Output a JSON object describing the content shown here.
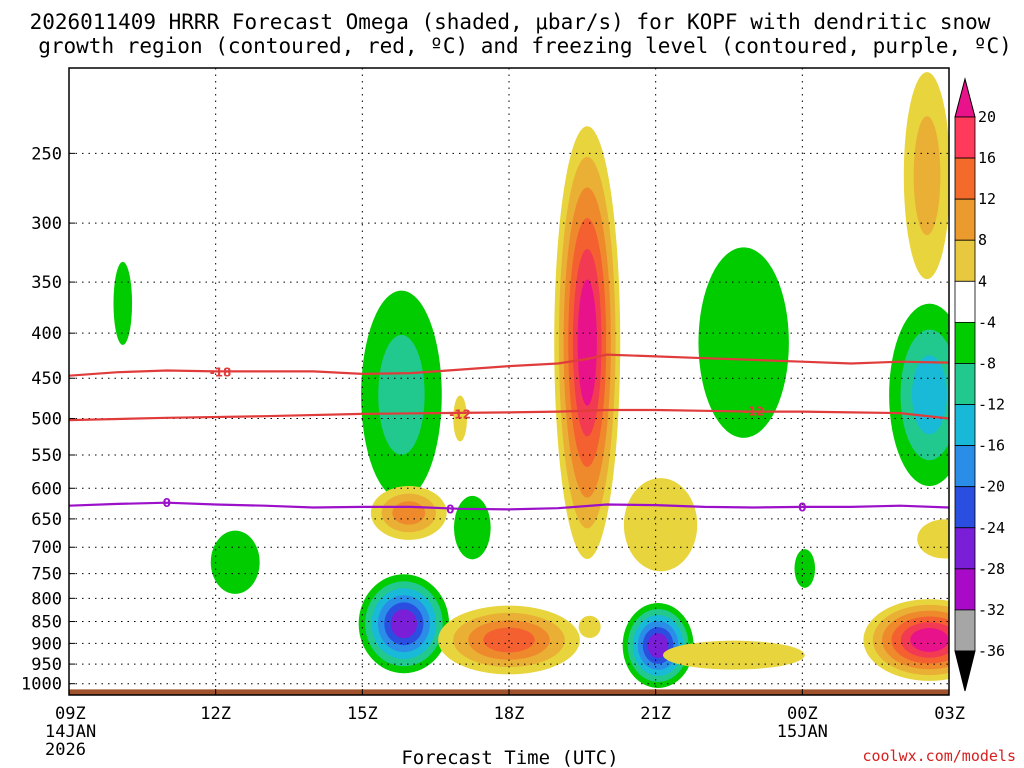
{
  "chart_data": {
    "type": "time-height contour",
    "title_line1": "2026011409 HRRR Forecast Omega (shaded, μbar/s) for KOPF with dendritic snow",
    "title_line2": "growth region (contoured, red, ºC) and freezing level (contoured, purple, ºC)",
    "xlabel": "Forecast Time (UTC)",
    "credit": "coolwx.com/models",
    "x_range_hours": [
      0,
      18
    ],
    "y_range_hpa": [
      1030,
      200
    ],
    "x_ticks": [
      {
        "hour": 0,
        "label": "09Z",
        "sub1": "14JAN",
        "sub2": "2026"
      },
      {
        "hour": 3,
        "label": "12Z",
        "sub1": "",
        "sub2": ""
      },
      {
        "hour": 6,
        "label": "15Z",
        "sub1": "",
        "sub2": ""
      },
      {
        "hour": 9,
        "label": "18Z",
        "sub1": "",
        "sub2": ""
      },
      {
        "hour": 12,
        "label": "21Z",
        "sub1": "",
        "sub2": ""
      },
      {
        "hour": 15,
        "label": "00Z",
        "sub1": "15JAN",
        "sub2": ""
      },
      {
        "hour": 18,
        "label": "03Z",
        "sub1": "",
        "sub2": ""
      }
    ],
    "y_ticks": [
      250,
      300,
      350,
      400,
      450,
      500,
      550,
      600,
      650,
      700,
      750,
      800,
      850,
      900,
      950,
      1000
    ],
    "colorbar": {
      "labels": [
        "20",
        "16",
        "12",
        "8",
        "4",
        "-4",
        "-8",
        "-12",
        "-16",
        "-20",
        "-24",
        "-28",
        "-32",
        "-36"
      ],
      "colors": [
        "#ff3a5a",
        "#f36a2a",
        "#eb9a2e",
        "#e8c83e",
        "#ffffff",
        "#00cc00",
        "#22c98e",
        "#18b8d8",
        "#2a8ee8",
        "#2a4ee0",
        "#7a1ed8",
        "#a80ac8",
        "#a6a6a6"
      ],
      "top_arrow_color": "#e8128a",
      "bottom_arrow_color": "#000000"
    },
    "palette": {
      "p4": "#e8d43c",
      "p8": "#e9b035",
      "p12": "#ee8a2c",
      "p16": "#f46030",
      "p20": "#f23a52",
      "p24": "#e8128a",
      "n4": "#00cc00",
      "n8": "#22c98e",
      "n12": "#19b9d8",
      "n16": "#2a8ee8",
      "n20": "#2a4ee0",
      "n24": "#7a1ed8"
    },
    "omega_cells": [
      {
        "h": 1.1,
        "p": 370,
        "dh": 0.38,
        "dp": 80,
        "levels": [
          "n4"
        ]
      },
      {
        "h": 3.4,
        "p": 728,
        "dh": 1.0,
        "dp": 120,
        "levels": [
          "n4"
        ]
      },
      {
        "h": 6.8,
        "p": 470,
        "dh": 1.65,
        "dp": 250,
        "levels": [
          "n4",
          "n8"
        ]
      },
      {
        "h": 6.95,
        "p": 640,
        "dh": 1.55,
        "dp": 90,
        "levels": [
          "p4",
          "p8",
          "p12"
        ]
      },
      {
        "h": 6.85,
        "p": 855,
        "dh": 1.85,
        "dp": 220,
        "levels": [
          "n4",
          "n8",
          "n12",
          "n16",
          "n20",
          "n24"
        ]
      },
      {
        "h": 8.0,
        "p": 500,
        "dh": 0.28,
        "dp": 60,
        "levels": [
          "p4"
        ]
      },
      {
        "h": 8.25,
        "p": 665,
        "dh": 0.75,
        "dp": 110,
        "levels": [
          "n4"
        ]
      },
      {
        "h": 9.0,
        "p": 892,
        "dh": 2.9,
        "dp": 160,
        "levels": [
          "p4",
          "p8",
          "p12",
          "p16"
        ]
      },
      {
        "h": 10.65,
        "p": 862,
        "dh": 0.45,
        "dp": 50,
        "levels": [
          "p4"
        ]
      },
      {
        "h": 10.6,
        "p": 410,
        "dh": 1.35,
        "dp": 420,
        "levels": [
          "p4",
          "p8",
          "p12",
          "p16",
          "p20",
          "p24"
        ]
      },
      {
        "h": 12.1,
        "p": 660,
        "dh": 1.5,
        "dp": 160,
        "levels": [
          "p4"
        ]
      },
      {
        "h": 12.05,
        "p": 905,
        "dh": 1.45,
        "dp": 200,
        "levels": [
          "n4",
          "n8",
          "n12",
          "n16",
          "n20",
          "n24"
        ]
      },
      {
        "h": 13.8,
        "p": 410,
        "dh": 1.85,
        "dp": 200,
        "levels": [
          "n4"
        ]
      },
      {
        "h": 15.05,
        "p": 740,
        "dh": 0.42,
        "dp": 75,
        "levels": [
          "n4"
        ]
      },
      {
        "h": 13.6,
        "p": 928,
        "dh": 2.9,
        "dp": 70,
        "levels": [
          "p4"
        ]
      },
      {
        "h": 17.55,
        "p": 265,
        "dh": 0.95,
        "dp": 140,
        "levels": [
          "p4",
          "p8"
        ]
      },
      {
        "h": 17.6,
        "p": 470,
        "dh": 1.65,
        "dp": 220,
        "levels": [
          "n4",
          "n8",
          "n12"
        ]
      },
      {
        "h": 17.9,
        "p": 685,
        "dh": 1.1,
        "dp": 70,
        "levels": [
          "p4"
        ]
      },
      {
        "h": 17.6,
        "p": 892,
        "dh": 2.7,
        "dp": 190,
        "levels": [
          "p4",
          "p8",
          "p12",
          "p16",
          "p20",
          "p24"
        ]
      }
    ],
    "isotherms": [
      {
        "label": "-18",
        "color": "#e03c3c",
        "points": [
          [
            0,
            447
          ],
          [
            1,
            443
          ],
          [
            2,
            441
          ],
          [
            3,
            442
          ],
          [
            4,
            442
          ],
          [
            5,
            442
          ],
          [
            6,
            445
          ],
          [
            7,
            444
          ],
          [
            8,
            440
          ],
          [
            9,
            436
          ],
          [
            10,
            433
          ],
          [
            10.6,
            428
          ],
          [
            11,
            423
          ],
          [
            12,
            425
          ],
          [
            13,
            427
          ],
          [
            14,
            429
          ],
          [
            15,
            431
          ],
          [
            16,
            433
          ],
          [
            17,
            431
          ],
          [
            18,
            432
          ]
        ],
        "label_at": [
          [
            3.1,
            443
          ]
        ]
      },
      {
        "label": "-12",
        "color": "#e03c3c",
        "points": [
          [
            0,
            502
          ],
          [
            2,
            499
          ],
          [
            4,
            497
          ],
          [
            6,
            494
          ],
          [
            7.5,
            493
          ],
          [
            9,
            492
          ],
          [
            10,
            491
          ],
          [
            11,
            489
          ],
          [
            12,
            489
          ],
          [
            13,
            490
          ],
          [
            14,
            491
          ],
          [
            15,
            491
          ],
          [
            16,
            492
          ],
          [
            17,
            493
          ],
          [
            18,
            500
          ]
        ],
        "label_at": [
          [
            8.0,
            494
          ],
          [
            14.0,
            490
          ]
        ]
      },
      {
        "label": "0",
        "color": "#9b10c8",
        "points": [
          [
            0,
            628
          ],
          [
            1,
            625
          ],
          [
            2,
            623
          ],
          [
            3,
            626
          ],
          [
            4,
            628
          ],
          [
            5,
            631
          ],
          [
            6,
            630
          ],
          [
            7,
            630
          ],
          [
            8,
            633
          ],
          [
            9,
            634
          ],
          [
            10,
            632
          ],
          [
            11,
            626
          ],
          [
            12,
            627
          ],
          [
            13,
            630
          ],
          [
            14,
            631
          ],
          [
            15,
            630
          ],
          [
            16,
            630
          ],
          [
            17,
            628
          ],
          [
            18,
            631
          ]
        ],
        "label_at": [
          [
            2.0,
            623
          ],
          [
            7.8,
            633
          ],
          [
            15.0,
            630
          ]
        ]
      }
    ],
    "ground_band": {
      "color": "#a0522d",
      "from_hpa": 1015,
      "to_hpa": 1030
    }
  }
}
